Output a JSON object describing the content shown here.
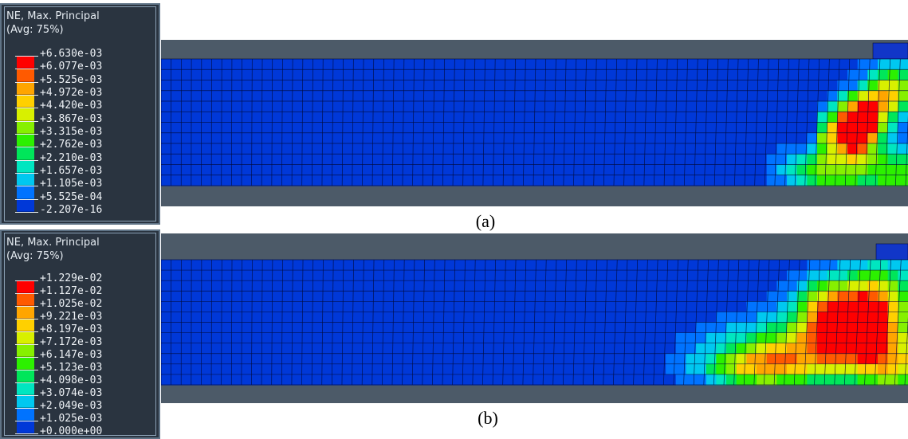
{
  "panels": [
    {
      "caption": "(a)",
      "legend": {
        "title": "NE, Max. Principal",
        "subtitle": "(Avg: 75%)",
        "values": [
          "+6.630e-03",
          "+6.077e-03",
          "+5.525e-03",
          "+4.972e-03",
          "+4.420e-03",
          "+3.867e-03",
          "+3.315e-03",
          "+2.762e-03",
          "+2.210e-03",
          "+1.657e-03",
          "+1.105e-03",
          "+5.525e-04",
          "-2.207e-16"
        ]
      }
    },
    {
      "caption": "(b)",
      "legend": {
        "title": "NE, Max. Principal",
        "subtitle": "(Avg: 75%)",
        "values": [
          "+1.229e-02",
          "+1.127e-02",
          "+1.025e-02",
          "+9.221e-03",
          "+8.197e-03",
          "+7.172e-03",
          "+6.147e-03",
          "+5.123e-03",
          "+4.098e-03",
          "+3.074e-03",
          "+2.049e-03",
          "+1.025e-03",
          "+0.000e+00"
        ]
      }
    }
  ],
  "colors": {
    "contour_scale_top_to_bottom": [
      "#ff0000",
      "#ff5a00",
      "#ffa500",
      "#ffd000",
      "#d8f000",
      "#86f000",
      "#2cf000",
      "#00e65a",
      "#00e6c0",
      "#00c8f0",
      "#0073ff",
      "#0038d8"
    ],
    "mesh_base": "#0a22b8",
    "mesh_lines": "#000a3c",
    "viewport_bg": "#4c5a68",
    "legend_bg": "#2a3440"
  }
}
